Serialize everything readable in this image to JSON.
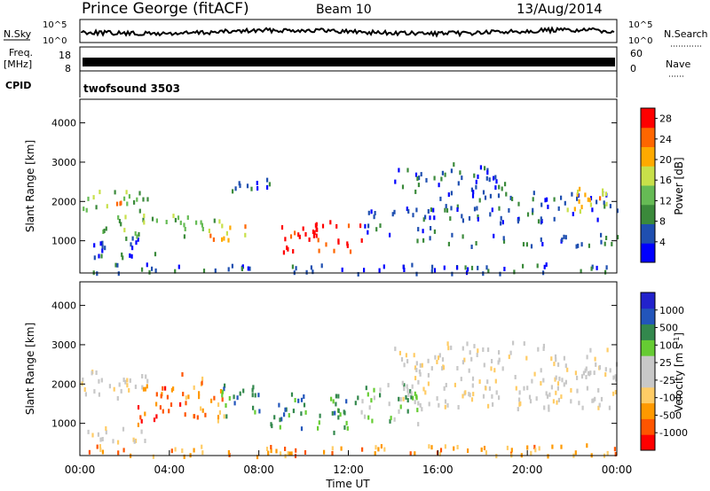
{
  "header": {
    "station": "Prince George (fitACF)",
    "beam": "Beam 10",
    "date": "13/Aug/2014"
  },
  "side_labels": {
    "nsky": "N.Sky",
    "nsearch": "N.Search",
    "freq_line1": "Freq.",
    "freq_line2": "[MHz]",
    "nave": "Nave",
    "cpid": "CPID"
  },
  "noise_panel": {
    "left_ticks": [
      "10^5",
      "10^0"
    ],
    "right_ticks": [
      "10^5",
      "10^0"
    ]
  },
  "freq_panel": {
    "left_ticks": [
      "18",
      "8"
    ],
    "right_ticks": [
      "60",
      "0"
    ]
  },
  "cpid_panel": {
    "program": "twofsound  3503"
  },
  "colors": {
    "power_scale": [
      "#0000ff",
      "#1f4fb0",
      "#3b8a3b",
      "#66bb55",
      "#c8e04a",
      "#ffaa00",
      "#ff6600",
      "#ff0000"
    ],
    "velocity_scale": [
      "#ff0000",
      "#ff5500",
      "#ff9900",
      "#ffcc66",
      "#c8c8c8",
      "#c8c8c8",
      "#66cc33",
      "#33884d",
      "#2255bb",
      "#2222cc"
    ]
  },
  "chart_data": [
    {
      "type": "heatmap",
      "name": "power",
      "ylabel": "Slant Range [km]",
      "ylim": [
        180,
        4600
      ],
      "yticks": [
        "1000",
        "2000",
        "3000",
        "4000"
      ],
      "colorbar": {
        "label": "Power [dB]",
        "ticks": [
          "4",
          "8",
          "12",
          "16",
          "20",
          "24",
          "28"
        ],
        "range": [
          0,
          30
        ]
      },
      "x_hours": [
        0,
        24
      ],
      "regions": [
        {
          "t0": 0.0,
          "t1": 3.0,
          "r0": 1750,
          "r1": 2300,
          "level": "mid"
        },
        {
          "t0": 1.0,
          "t1": 2.2,
          "r0": 1950,
          "r1": 2200,
          "level": "high"
        },
        {
          "t0": 0.5,
          "t1": 3.5,
          "r0": 600,
          "r1": 1200,
          "level": "low"
        },
        {
          "t0": 1.0,
          "t1": 6.0,
          "r0": 1150,
          "r1": 1700,
          "level": "mid"
        },
        {
          "t0": 5.5,
          "t1": 7.5,
          "r0": 1050,
          "r1": 1550,
          "level": "high"
        },
        {
          "t0": 6.5,
          "t1": 9.0,
          "r0": 2250,
          "r1": 2650,
          "level": "low"
        },
        {
          "t0": 9.0,
          "t1": 12.8,
          "r0": 750,
          "r1": 1600,
          "level": "max"
        },
        {
          "t0": 12.5,
          "t1": 16.0,
          "r0": 1200,
          "r1": 1900,
          "level": "low"
        },
        {
          "t0": 14.0,
          "t1": 19.0,
          "r0": 2300,
          "r1": 3000,
          "level": "low"
        },
        {
          "t0": 16.0,
          "t1": 24.0,
          "r0": 1500,
          "r1": 2300,
          "level": "low"
        },
        {
          "t0": 21.5,
          "t1": 24.0,
          "r0": 1800,
          "r1": 2400,
          "level": "high"
        },
        {
          "t0": 15.0,
          "t1": 24.0,
          "r0": 900,
          "r1": 1200,
          "level": "low"
        },
        {
          "t0": 0.0,
          "t1": 24.0,
          "r0": 200,
          "r1": 450,
          "level": "low"
        }
      ]
    },
    {
      "type": "heatmap",
      "name": "velocity",
      "ylabel": "Slant Range [km]",
      "xlabel": "Time UT",
      "ylim": [
        180,
        4600
      ],
      "yticks": [
        "1000",
        "2000",
        "3000",
        "4000"
      ],
      "xticks": [
        "00:00",
        "04:00",
        "08:00",
        "12:00",
        "16:00",
        "20:00",
        "00:00"
      ],
      "colorbar": {
        "label": "Velocity [m s",
        "label_exp": "-1",
        "label_end": "]",
        "ticks": [
          "-1000",
          "-500",
          "-100",
          "-25",
          "25",
          "100",
          "500",
          "1000"
        ]
      },
      "x_hours": [
        0,
        24
      ],
      "regions": [
        {
          "t0": 0.0,
          "t1": 3.0,
          "r0": 1600,
          "r1": 2400,
          "level": "zero"
        },
        {
          "t0": 2.5,
          "t1": 4.5,
          "r0": 1000,
          "r1": 2100,
          "level": "neg_mid"
        },
        {
          "t0": 4.5,
          "t1": 6.5,
          "r0": 1100,
          "r1": 2300,
          "level": "neg_low"
        },
        {
          "t0": 6.0,
          "t1": 8.0,
          "r0": 1200,
          "r1": 2100,
          "level": "pos_mid"
        },
        {
          "t0": 8.5,
          "t1": 12.5,
          "r0": 800,
          "r1": 1800,
          "level": "pos_high"
        },
        {
          "t0": 12.5,
          "t1": 15.5,
          "r0": 1000,
          "r1": 2100,
          "level": "pos_low"
        },
        {
          "t0": 14.0,
          "t1": 24.0,
          "r0": 1400,
          "r1": 3100,
          "level": "zero"
        },
        {
          "t0": 0.0,
          "t1": 24.0,
          "r0": 200,
          "r1": 500,
          "level": "neg_low"
        },
        {
          "t0": 0.0,
          "t1": 3.0,
          "r0": 550,
          "r1": 1000,
          "level": "zero"
        }
      ]
    }
  ]
}
